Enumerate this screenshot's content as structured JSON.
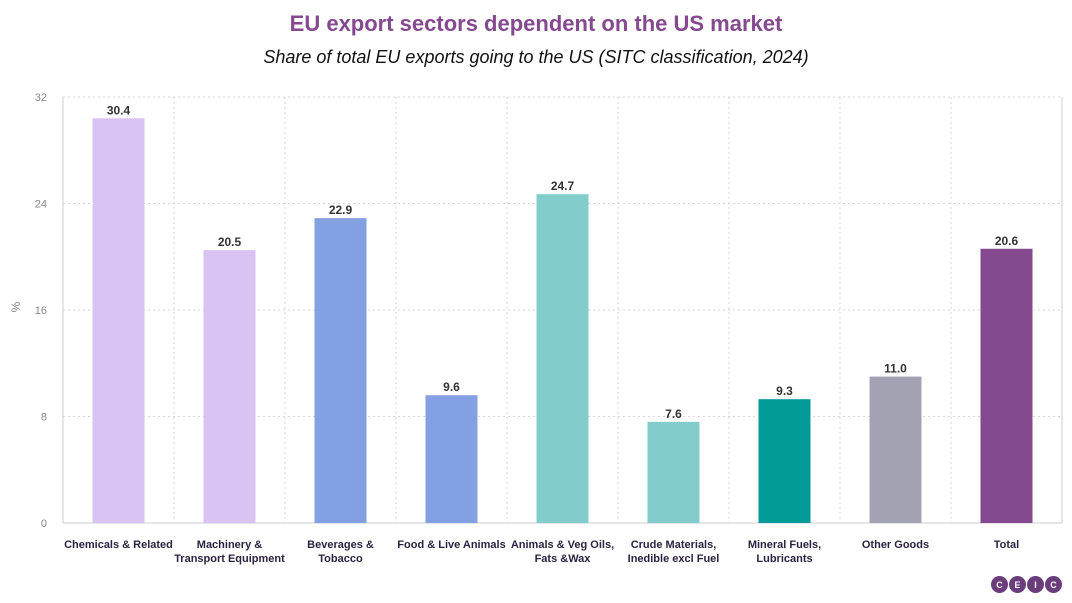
{
  "chart_data": {
    "type": "bar",
    "title": "EU export sectors dependent on the US market",
    "subtitle": "Share of total EU exports going to the US (SITC classification, 2024)",
    "xlabel": "",
    "ylabel": "%",
    "ylim": [
      0,
      32
    ],
    "yticks": [
      0,
      8,
      16,
      24,
      32
    ],
    "grid": true,
    "categories": [
      "Chemicals & Related",
      "Machinery & Transport Equipment",
      "Beverages & Tobacco",
      "Food & Live Animals",
      "Animals & Veg Oils, Fats &Wax",
      "Crude Materials, Inedible excl Fuel",
      "Mineral Fuels, Lubricants",
      "Other Goods",
      "Total"
    ],
    "category_lines": [
      [
        "Chemicals & Related"
      ],
      [
        "Machinery &",
        "Transport Equipment"
      ],
      [
        "Beverages &",
        "Tobacco"
      ],
      [
        "Food & Live Animals"
      ],
      [
        "Animals & Veg Oils,",
        "Fats &Wax"
      ],
      [
        "Crude Materials,",
        "Inedible excl Fuel"
      ],
      [
        "Mineral Fuels,",
        "Lubricants"
      ],
      [
        "Other Goods"
      ],
      [
        "Total"
      ]
    ],
    "values": [
      30.4,
      20.5,
      22.9,
      9.6,
      24.7,
      7.6,
      9.3,
      11.0,
      20.6
    ],
    "value_labels": [
      "30.4",
      "20.5",
      "22.9",
      "9.6",
      "24.7",
      "7.6",
      "9.3",
      "11.0",
      "20.6"
    ],
    "colors": [
      "#d8c3f2",
      "#d8c3f2",
      "#83a0e2",
      "#83a0e2",
      "#82cccc",
      "#82cccc",
      "#039b97",
      "#a3a2b3",
      "#84498f"
    ]
  },
  "logo": {
    "name": "CEIC",
    "letters": [
      "C",
      "E",
      "I",
      "C"
    ]
  }
}
